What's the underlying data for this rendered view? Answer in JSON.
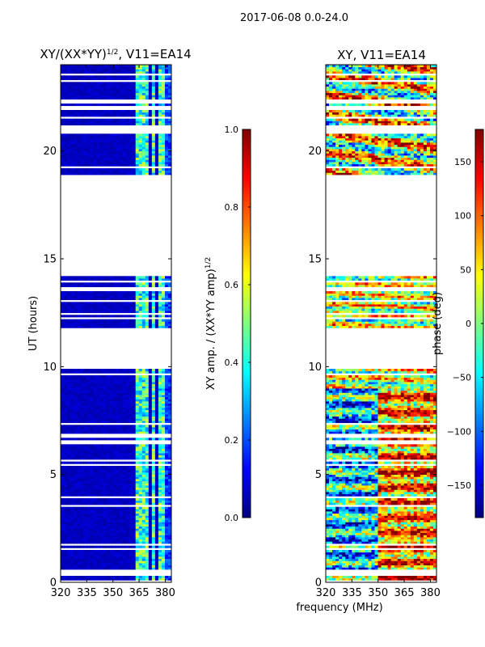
{
  "figure": {
    "suptitle": "2017-06-08 0.0-24.0",
    "xlabel_shared": "frequency (MHz)"
  },
  "colormap": {
    "name": "jet",
    "stops": [
      "#00007f",
      "#0000ff",
      "#007fff",
      "#00ffff",
      "#7fff7f",
      "#ffff00",
      "#ff7f00",
      "#ff0000",
      "#7f0000"
    ]
  },
  "chart_data": [
    {
      "type": "heatmap",
      "title": "XY/(XX*YY)^1/2, V11=EA14",
      "title_main": "XY/(XX*YY)",
      "title_sup": "1/2",
      "title_tail": ", V11=EA14",
      "xlabel": "",
      "ylabel": "UT (hours)",
      "xlim": [
        320,
        383.5
      ],
      "ylim": [
        0,
        24
      ],
      "xticks": [
        320,
        335,
        350,
        365,
        380
      ],
      "xtick_labels": [
        "320",
        "335",
        "350",
        "365",
        "380"
      ],
      "yticks": [
        0,
        5,
        10,
        15,
        20
      ],
      "ytick_labels": [
        "0",
        "5",
        "10",
        "15",
        "20"
      ],
      "value_range": [
        0.0,
        1.0
      ],
      "background_value": 0.04,
      "bright_channels_mhz": [
        [
          362.5,
          366.0
        ],
        [
          366.5,
          370.5
        ],
        [
          372.5,
          375.0
        ],
        [
          376.0,
          380.0
        ]
      ],
      "data_gaps_hours": [
        [
          10.15,
          11.8
        ],
        [
          14.2,
          18.9
        ],
        [
          19.25,
          19.3
        ],
        [
          20.9,
          21.1
        ]
      ],
      "colorbar": {
        "label": "XY amp. / (XX*YY amp)^1/2",
        "label_main": "XY amp. / (XX*YY amp)",
        "label_sup": "1/2",
        "ticks": [
          0.0,
          0.2,
          0.4,
          0.6,
          0.8,
          1.0
        ],
        "tick_labels": [
          "0.0",
          "0.2",
          "0.4",
          "0.6",
          "0.8",
          "1.0"
        ],
        "range": [
          0.0,
          1.0
        ]
      }
    },
    {
      "type": "heatmap",
      "title": "XY, V11=EA14",
      "xlabel": "frequency (MHz)",
      "ylabel": "",
      "xlim": [
        320,
        383.5
      ],
      "ylim": [
        0,
        24
      ],
      "xticks": [
        320,
        335,
        350,
        365,
        380
      ],
      "xtick_labels": [
        "320",
        "335",
        "350",
        "365",
        "380"
      ],
      "yticks": [
        0,
        5,
        10,
        15,
        20
      ],
      "ytick_labels": [
        "0",
        "5",
        "10",
        "15",
        "20"
      ],
      "value_range": [
        -180,
        180
      ],
      "data_gaps_hours": [
        [
          10.15,
          11.8
        ],
        [
          14.2,
          18.9
        ],
        [
          19.25,
          19.3
        ],
        [
          20.9,
          21.1
        ]
      ],
      "colorbar": {
        "label": "phase (deg)",
        "ticks": [
          -150,
          -100,
          -50,
          0,
          50,
          100,
          150
        ],
        "tick_labels": [
          "−150",
          "−100",
          "−50",
          "0",
          "50",
          "100",
          "150"
        ],
        "range": [
          -180,
          180
        ]
      }
    }
  ]
}
